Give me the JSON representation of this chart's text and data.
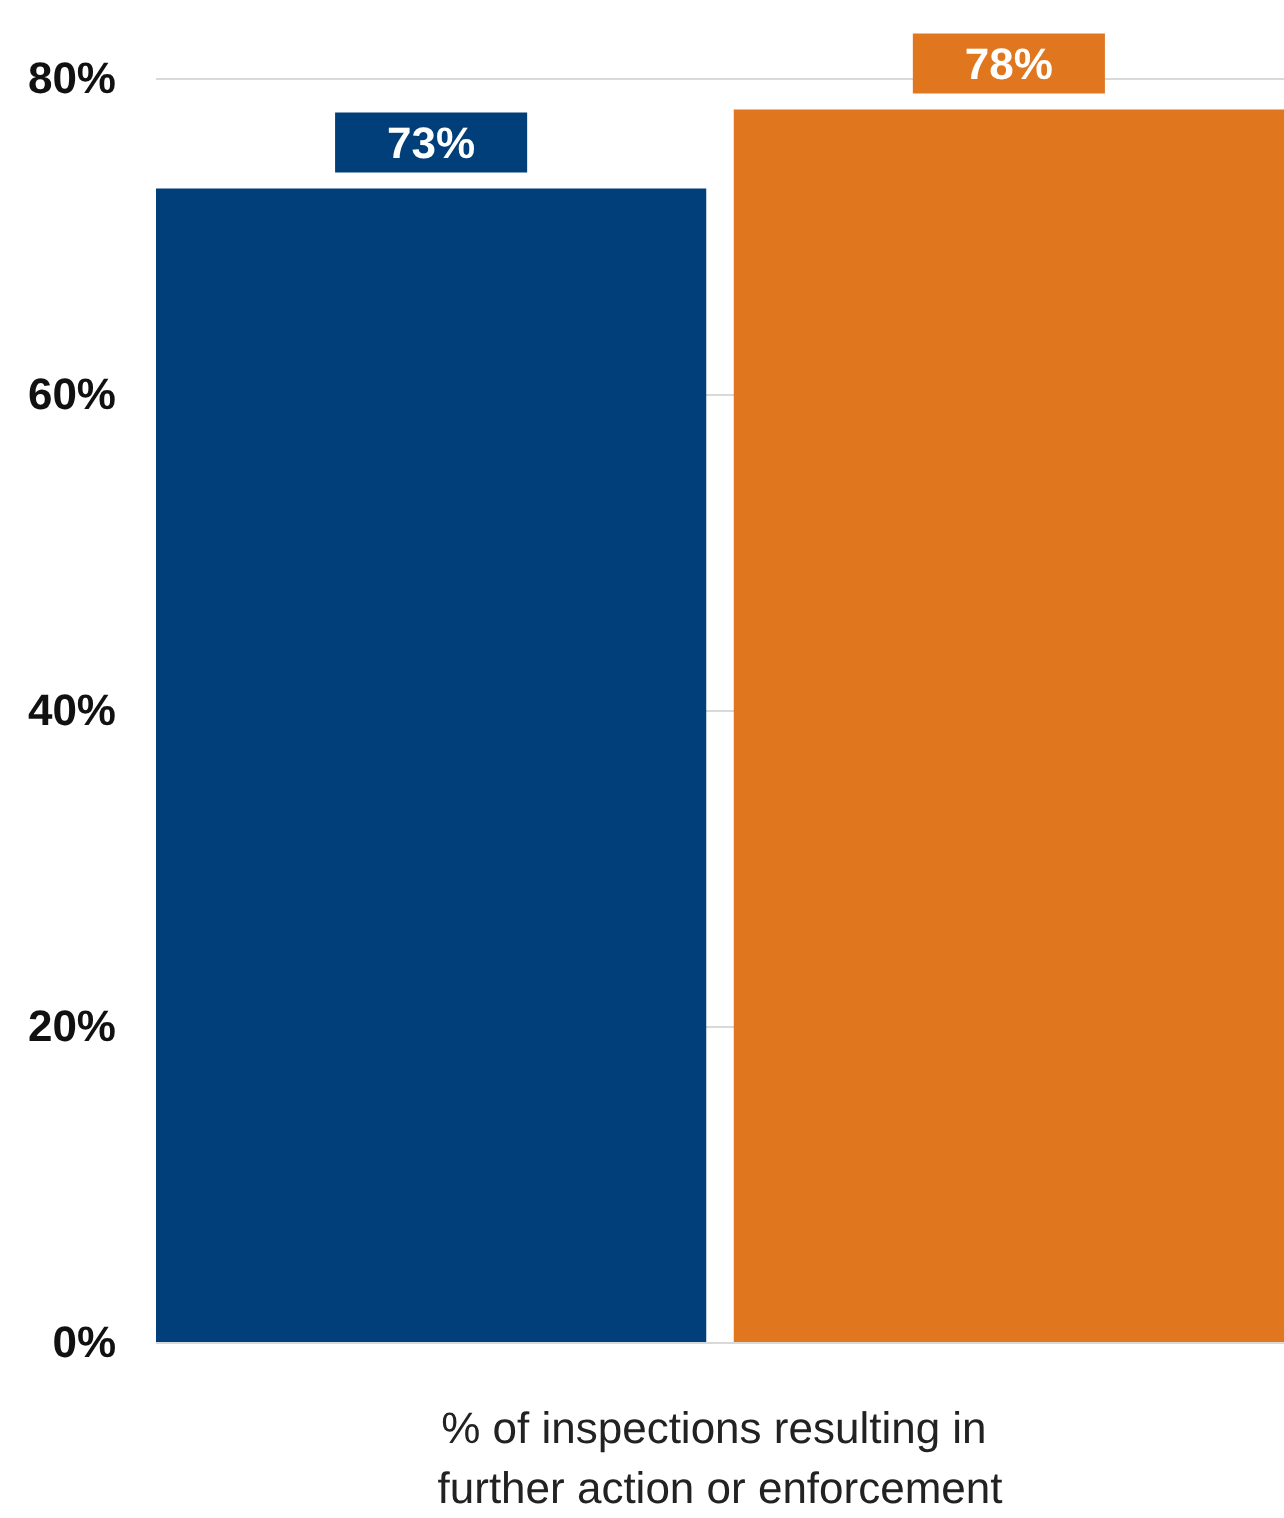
{
  "chart_data": {
    "type": "bar",
    "categories": [
      "% of inspections resulting in further action or enforcement"
    ],
    "series": [
      {
        "color": "#003f7a",
        "values": [
          73
        ],
        "value_labels": [
          "73%"
        ]
      },
      {
        "color": "#e0761e",
        "values": [
          78
        ],
        "value_labels": [
          "78%"
        ]
      }
    ],
    "ylim": [
      0,
      80
    ],
    "yticks": [
      {
        "value": 0,
        "label": "0%"
      },
      {
        "value": 20,
        "label": "20%"
      },
      {
        "value": 40,
        "label": "40%"
      },
      {
        "value": 60,
        "label": "60%"
      },
      {
        "value": 80,
        "label": "80%"
      }
    ],
    "grid": "y"
  }
}
